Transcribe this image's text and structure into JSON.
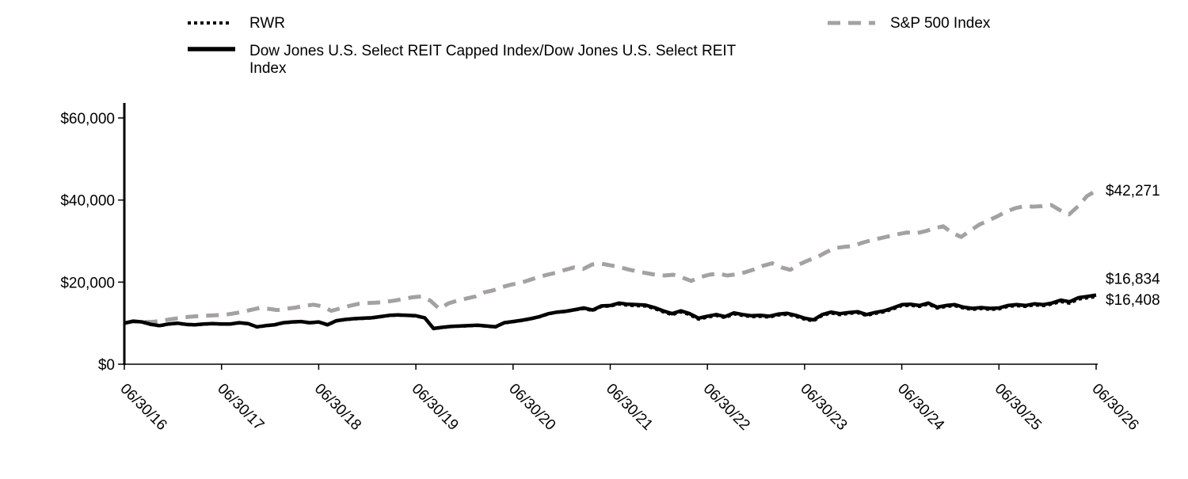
{
  "chart_data": {
    "type": "line",
    "title": "",
    "xlabel": "",
    "ylabel": "",
    "x_ticks": [
      "06/30/16",
      "06/30/17",
      "06/30/18",
      "06/30/19",
      "06/30/20",
      "06/30/21",
      "06/30/22",
      "06/30/23",
      "06/30/24",
      "06/30/25",
      "06/30/26"
    ],
    "y_ticks": [
      "$0",
      "$20,000",
      "$40,000",
      "$60,000"
    ],
    "y_tick_values": [
      0,
      20000,
      40000,
      60000
    ],
    "xlim": [
      0,
      120
    ],
    "ylim": [
      0,
      60000
    ],
    "grid": false,
    "legend_position": "top",
    "series": [
      {
        "name": "RWR",
        "style": "dotted",
        "color": "#000000",
        "end_label": "$16,408",
        "values": [
          10000,
          10500,
          10200,
          9600,
          9300,
          9700,
          9900,
          9600,
          9500,
          9700,
          9800,
          9700,
          9700,
          10000,
          9800,
          9000,
          9300,
          9500,
          10000,
          10200,
          10300,
          10000,
          10200,
          9500,
          10500,
          10800,
          11000,
          11100,
          11200,
          11500,
          11800,
          11900,
          11800,
          11700,
          11200,
          8600,
          8900,
          9100,
          9200,
          9300,
          9400,
          9200,
          9000,
          10000,
          10300,
          10600,
          11000,
          11500,
          12200,
          12600,
          12800,
          13200,
          13500,
          13000,
          14000,
          14100,
          14600,
          14300,
          14200,
          14100,
          13500,
          12700,
          12000,
          12700,
          12000,
          10900,
          11400,
          11800,
          11300,
          12200,
          11800,
          11500,
          11600,
          11400,
          11900,
          12100,
          11600,
          10900,
          10500,
          11800,
          12400,
          12000,
          12300,
          12500,
          11800,
          12300,
          12700,
          13400,
          14200,
          14300,
          14000,
          14600,
          13600,
          14000,
          14200,
          13600,
          13300,
          13500,
          13300,
          13400,
          14000,
          14200,
          14000,
          14400,
          14200,
          14600,
          15200,
          14800,
          15800,
          16100,
          16408
        ]
      },
      {
        "name": "Dow Jones U.S. Select REIT Capped Index/Dow Jones U.S. Select REIT Index",
        "style": "solid",
        "color": "#000000",
        "end_label": "$16,834",
        "values": [
          10000,
          10500,
          10300,
          9700,
          9400,
          9800,
          10000,
          9700,
          9600,
          9800,
          9900,
          9800,
          9800,
          10100,
          9900,
          9100,
          9400,
          9600,
          10100,
          10300,
          10400,
          10100,
          10300,
          9600,
          10600,
          10900,
          11100,
          11200,
          11300,
          11600,
          11900,
          12000,
          11900,
          11800,
          11300,
          8700,
          9000,
          9200,
          9300,
          9400,
          9500,
          9300,
          9100,
          10100,
          10400,
          10700,
          11100,
          11600,
          12300,
          12700,
          12900,
          13300,
          13700,
          13200,
          14200,
          14300,
          14900,
          14600,
          14500,
          14400,
          13800,
          13000,
          12300,
          13000,
          12300,
          11200,
          11700,
          12100,
          11600,
          12500,
          12100,
          11800,
          11900,
          11700,
          12200,
          12400,
          11900,
          11200,
          10800,
          12100,
          12700,
          12300,
          12600,
          12800,
          12100,
          12600,
          13000,
          13700,
          14500,
          14600,
          14300,
          14900,
          13900,
          14300,
          14500,
          13900,
          13600,
          13800,
          13600,
          13700,
          14300,
          14500,
          14300,
          14700,
          14500,
          14900,
          15600,
          15200,
          16200,
          16500,
          16834
        ]
      },
      {
        "name": "S&P 500 Index",
        "style": "dashed",
        "color": "#a3a1a2",
        "end_label": "$42,271",
        "values": [
          10000,
          10400,
          10300,
          10300,
          10500,
          10900,
          11200,
          11500,
          11700,
          11800,
          11900,
          12000,
          12300,
          12700,
          13200,
          13700,
          13500,
          13200,
          13500,
          13800,
          14200,
          14500,
          14100,
          13000,
          13600,
          14200,
          14700,
          14900,
          15000,
          15200,
          15500,
          15900,
          16300,
          16500,
          15500,
          13500,
          14800,
          15500,
          16000,
          16500,
          17500,
          18000,
          18800,
          19400,
          19800,
          20500,
          21200,
          21800,
          22300,
          23000,
          23600,
          23200,
          24300,
          24500,
          24100,
          23700,
          23100,
          22600,
          22200,
          21800,
          21600,
          21800,
          21100,
          20300,
          21200,
          21800,
          22100,
          21600,
          21900,
          22400,
          23100,
          24000,
          24600,
          23600,
          23000,
          24300,
          25300,
          26100,
          27300,
          28300,
          28600,
          28800,
          29600,
          30200,
          30700,
          31200,
          31700,
          32100,
          31900,
          32400,
          33100,
          33600,
          32000,
          31000,
          32500,
          34000,
          35000,
          36000,
          37200,
          38000,
          38500,
          38400,
          38500,
          38800,
          37500,
          36500,
          38500,
          41000,
          42271
        ]
      }
    ]
  }
}
